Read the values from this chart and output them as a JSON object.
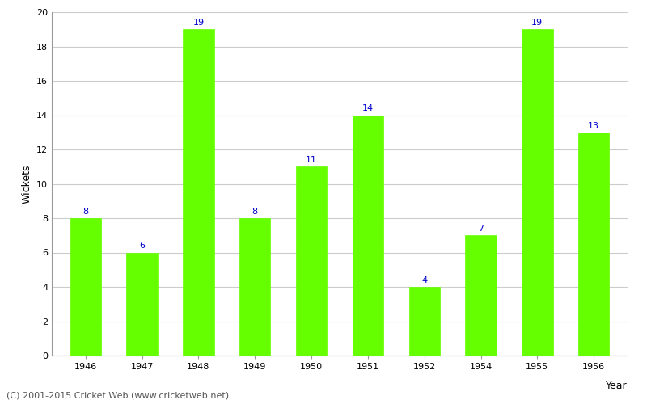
{
  "years": [
    "1946",
    "1947",
    "1948",
    "1949",
    "1950",
    "1951",
    "1952",
    "1954",
    "1955",
    "1956"
  ],
  "wickets": [
    8,
    6,
    19,
    8,
    11,
    14,
    4,
    7,
    19,
    13
  ],
  "bar_color": "#66ff00",
  "bar_edge_color": "#66ff00",
  "label_color": "#0000cc",
  "xlabel": "Year",
  "ylabel": "Wickets",
  "ylim": [
    0,
    20
  ],
  "yticks": [
    0,
    2,
    4,
    6,
    8,
    10,
    12,
    14,
    16,
    18,
    20
  ],
  "grid_color": "#cccccc",
  "background_color": "#ffffff",
  "footer": "(C) 2001-2015 Cricket Web (www.cricketweb.net)",
  "label_fontsize": 8,
  "axis_label_fontsize": 9,
  "tick_fontsize": 8,
  "footer_fontsize": 8,
  "bar_width": 0.55
}
